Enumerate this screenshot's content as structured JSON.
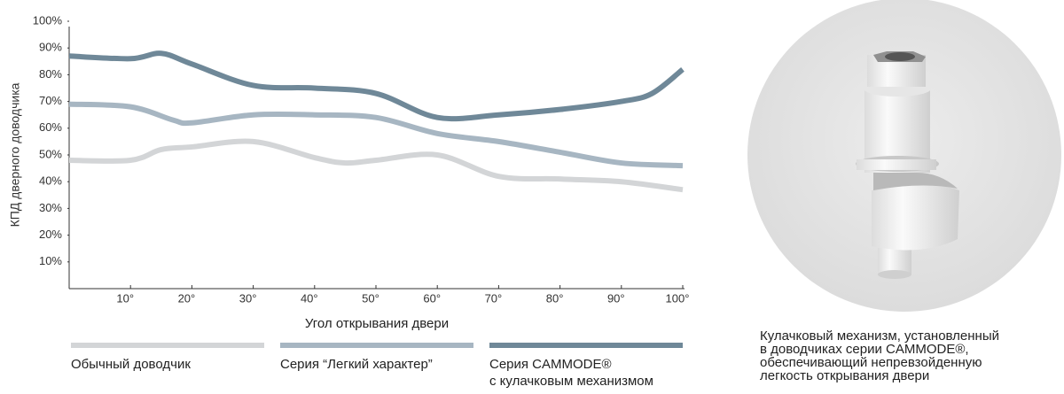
{
  "chart_data": {
    "type": "line",
    "y_label": "КПД дверного доводчика",
    "x_label": "Угол открывания двери",
    "xlim": [
      0,
      100
    ],
    "ylim": [
      0,
      100
    ],
    "xticks": [
      {
        "value": 10,
        "label": "10°"
      },
      {
        "value": 20,
        "label": "20°"
      },
      {
        "value": 30,
        "label": "30°"
      },
      {
        "value": 40,
        "label": "40°"
      },
      {
        "value": 50,
        "label": "50°"
      },
      {
        "value": 60,
        "label": "60°"
      },
      {
        "value": 70,
        "label": "70°"
      },
      {
        "value": 80,
        "label": "80°"
      },
      {
        "value": 90,
        "label": "90°"
      },
      {
        "value": 100,
        "label": "100°"
      }
    ],
    "yticks": [
      {
        "value": 10,
        "label": "10%"
      },
      {
        "value": 20,
        "label": "20%"
      },
      {
        "value": 30,
        "label": "30%"
      },
      {
        "value": 40,
        "label": "40%"
      },
      {
        "value": 50,
        "label": "50%"
      },
      {
        "value": 60,
        "label": "60%"
      },
      {
        "value": 70,
        "label": "70%"
      },
      {
        "value": 80,
        "label": "80%"
      },
      {
        "value": 90,
        "label": "90%"
      },
      {
        "value": 100,
        "label": "100%"
      }
    ],
    "grid": false,
    "legend": "bottom",
    "series": [
      {
        "name": "Обычный доводчик",
        "color": "#d3d5d7",
        "x": [
          0,
          10,
          15,
          20,
          30,
          40,
          45,
          50,
          60,
          70,
          80,
          90,
          100
        ],
        "values": [
          48,
          48,
          52,
          53,
          55,
          49,
          47,
          48,
          50,
          42,
          41,
          40,
          37
        ]
      },
      {
        "name": "Серия “Легкий характер”",
        "color": "#a7b6c2",
        "x": [
          0,
          10,
          17,
          20,
          30,
          40,
          50,
          60,
          70,
          80,
          90,
          100
        ],
        "values": [
          69,
          68,
          63,
          62,
          65,
          65,
          64,
          58,
          55,
          51,
          47,
          46
        ]
      },
      {
        "name": "Серия CAMMODE®\nс кулачковым механизмом",
        "color": "#6f8898",
        "x": [
          0,
          10,
          15,
          20,
          30,
          40,
          50,
          60,
          70,
          80,
          90,
          95,
          100
        ],
        "values": [
          87,
          86,
          88,
          84,
          76,
          75,
          73,
          64,
          65,
          67,
          70,
          73,
          82
        ]
      }
    ]
  },
  "caption": [
    "Кулачковый механизм, установленный",
    "в доводчиках серии CAMMODE®,",
    "обеспечивающий непревзойденную",
    "легкость открывания двери"
  ]
}
